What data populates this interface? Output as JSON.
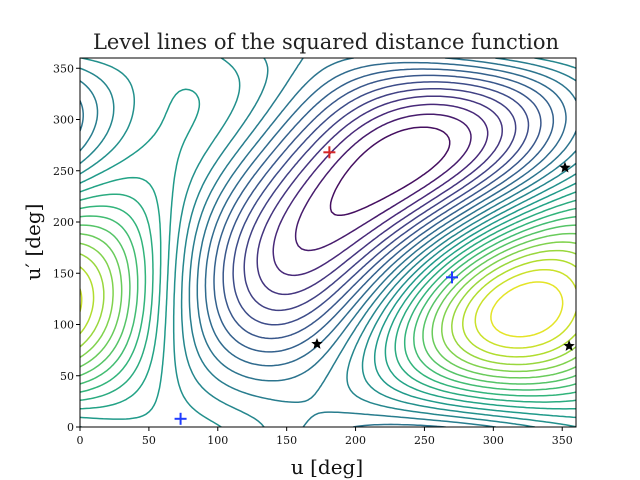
{
  "chart_data": {
    "type": "contour",
    "title": "Level lines of the squared distance function",
    "xlabel": "u [deg]",
    "ylabel": "u′ [deg]",
    "xlim": [
      0,
      360
    ],
    "ylim": [
      0,
      360
    ],
    "xticks": [
      0,
      50,
      100,
      150,
      200,
      250,
      300,
      350
    ],
    "yticks": [
      0,
      50,
      100,
      150,
      200,
      250,
      300,
      350
    ],
    "grid": false,
    "colormap": "viridis",
    "markers": [
      {
        "type": "maximum",
        "symbol": "plus",
        "color": "#d62728",
        "x": 181,
        "y": 268
      },
      {
        "type": "minimum",
        "symbol": "plus",
        "color": "#1f3cff",
        "x": 270,
        "y": 146
      },
      {
        "type": "minimum",
        "symbol": "plus",
        "color": "#1f3cff",
        "x": 73,
        "y": 8
      },
      {
        "type": "saddle",
        "symbol": "star",
        "color": "#000000",
        "x": 172,
        "y": 81
      },
      {
        "type": "saddle",
        "symbol": "star",
        "color": "#000000",
        "x": 352,
        "y": 253
      },
      {
        "type": "saddle",
        "symbol": "star",
        "color": "#000000",
        "x": 355,
        "y": 79
      }
    ]
  }
}
